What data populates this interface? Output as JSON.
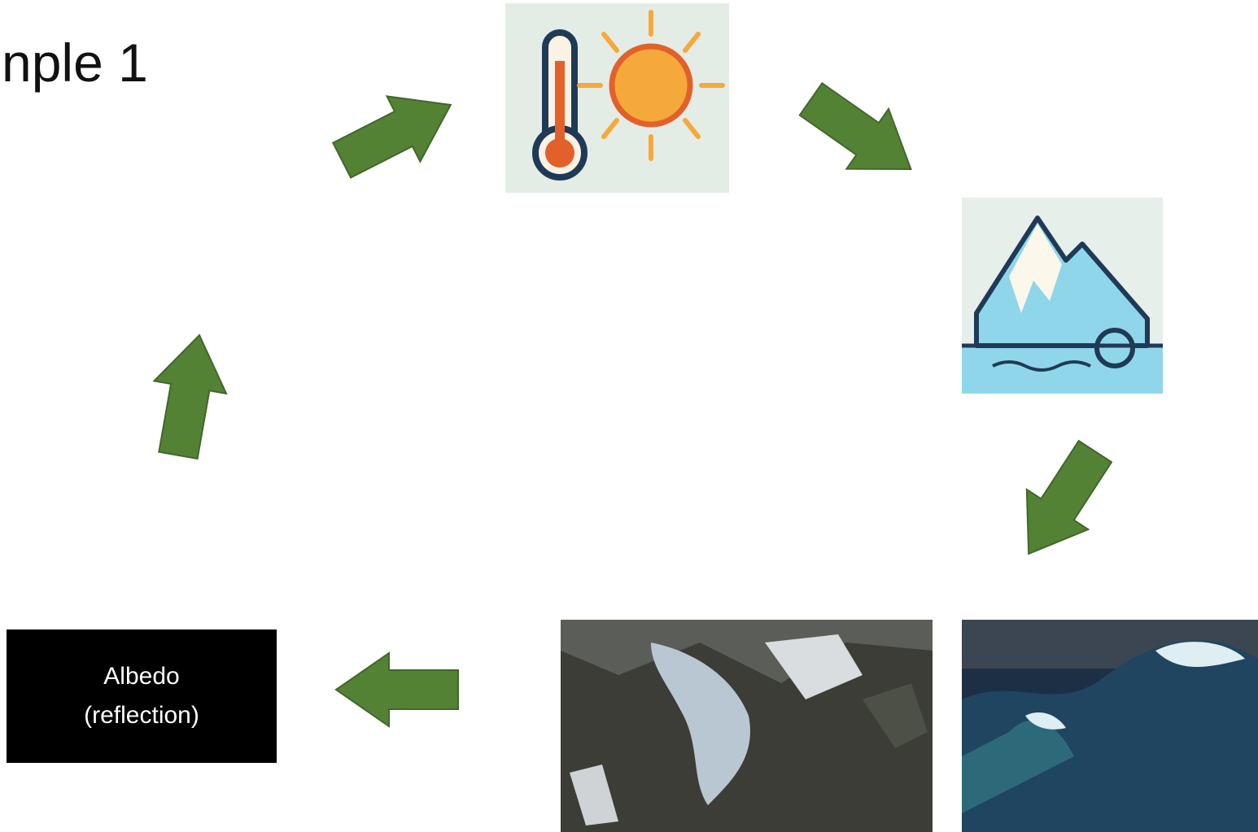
{
  "title": "nple 1",
  "box": {
    "lines": [
      "Albedo",
      "(reflection)"
    ]
  }
}
